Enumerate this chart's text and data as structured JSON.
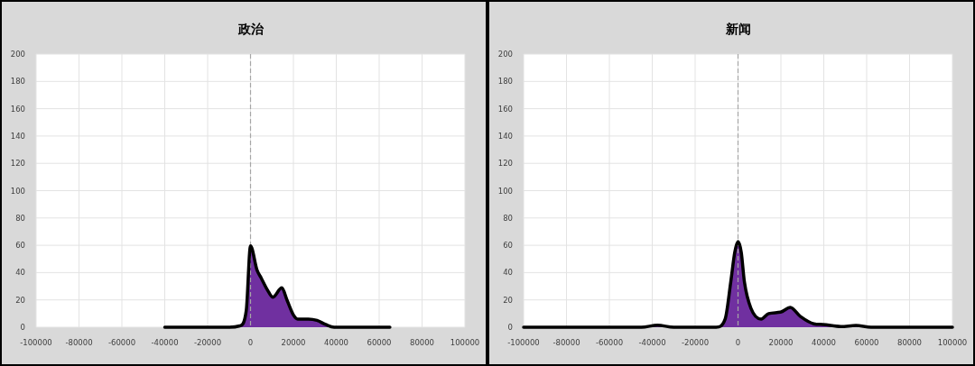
{
  "chart_data": [
    {
      "type": "area",
      "title": "政治",
      "x": [
        -40000,
        -10000,
        -5000,
        -2000,
        0,
        3000,
        5000,
        8000,
        10400,
        14600,
        17000,
        20000,
        22000,
        27000,
        31000,
        35000,
        39000,
        45000,
        65000
      ],
      "series": [
        {
          "color": "#7030a0",
          "values": [
            0,
            0,
            1,
            12,
            59.6,
            42,
            36,
            27,
            22,
            28.8,
            20,
            9,
            6,
            6,
            5,
            2,
            0,
            0,
            0
          ]
        }
      ],
      "xlim": [
        -100000,
        100000
      ],
      "ylim": [
        0,
        200
      ],
      "xticks": [
        -100000,
        -80000,
        -60000,
        -40000,
        -20000,
        0,
        20000,
        40000,
        60000,
        80000,
        100000
      ],
      "yticks": [
        0,
        20,
        40,
        60,
        80,
        100,
        120,
        140,
        160,
        180,
        200
      ],
      "grid": true,
      "ref_lines": [
        {
          "axis": "x",
          "value": 0,
          "color": "#a6a6a6",
          "line_style": "dashed"
        }
      ]
    },
    {
      "type": "area",
      "title": "新闻",
      "x": [
        -100000,
        -45000,
        -37600,
        -30000,
        -10200,
        -6000,
        -3400,
        -1500,
        0,
        1500,
        3000,
        6000,
        10800,
        14300,
        19800,
        24400,
        29000,
        35400,
        39600,
        48000,
        55000,
        62000,
        100000
      ],
      "series": [
        {
          "color": "#7030a0",
          "values": [
            0,
            0,
            1.5,
            0,
            0,
            6,
            33,
            55,
            62.7,
            55,
            33,
            14,
            6,
            10,
            11,
            14.5,
            8,
            2.5,
            2,
            0.5,
            1.3,
            0,
            0
          ]
        }
      ],
      "xlim": [
        -100000,
        100000
      ],
      "ylim": [
        0,
        200
      ],
      "xticks": [
        -100000,
        -80000,
        -60000,
        -40000,
        -20000,
        0,
        20000,
        40000,
        60000,
        80000,
        100000
      ],
      "yticks": [
        0,
        20,
        40,
        60,
        80,
        100,
        120,
        140,
        160,
        180,
        200
      ],
      "grid": true,
      "ref_lines": [
        {
          "axis": "x",
          "value": 0,
          "color": "#a6a6a6",
          "line_style": "dashed"
        }
      ]
    }
  ]
}
